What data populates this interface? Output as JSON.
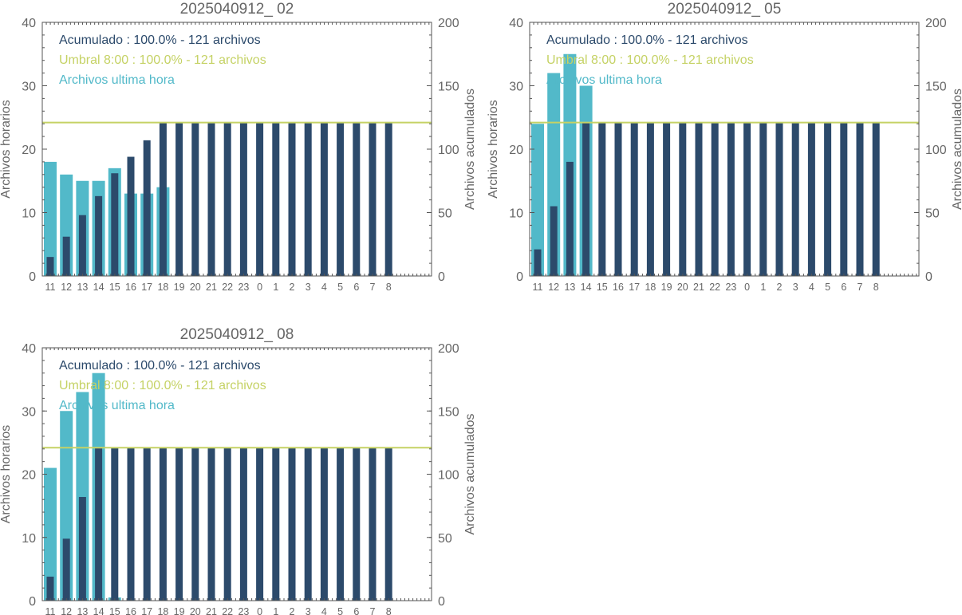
{
  "colors": {
    "hourly": "#52b9c9",
    "cumulative": "#2c4a6b",
    "threshold": "#c5d265",
    "axis": "#555555",
    "text": "#666666"
  },
  "chart_data": [
    {
      "type": "bar",
      "title": "2025040912_ 02",
      "ylabel": "Archivos horarios",
      "y2label": "Archivos acumulados",
      "ylim": [
        0,
        40
      ],
      "y2lim": [
        0,
        200
      ],
      "yticks": [
        0,
        10,
        20,
        30,
        40
      ],
      "y2ticks": [
        0,
        50,
        100,
        150,
        200
      ],
      "categories": [
        "11",
        "12",
        "13",
        "14",
        "15",
        "16",
        "17",
        "18",
        "19",
        "20",
        "21",
        "22",
        "23",
        "0",
        "1",
        "2",
        "3",
        "4",
        "5",
        "6",
        "7",
        "8"
      ],
      "series": [
        {
          "name": "Archivos ultima hora",
          "axis": "left",
          "values": [
            18,
            16,
            15,
            15,
            17,
            13,
            13,
            14,
            0,
            0,
            0,
            0,
            0,
            0,
            0,
            0,
            0,
            0,
            0,
            0,
            0,
            0
          ]
        },
        {
          "name": "Acumulado",
          "axis": "right",
          "values": [
            15,
            31,
            48,
            63,
            81,
            94,
            107,
            121,
            121,
            121,
            121,
            121,
            121,
            121,
            121,
            121,
            121,
            121,
            121,
            121,
            121,
            121
          ]
        }
      ],
      "threshold": {
        "value": 121,
        "axis": "right"
      },
      "legend": [
        {
          "text": "Acumulado : 100.0% - 121 archivos",
          "color": "#2c4a6b"
        },
        {
          "text": "Umbral 8:00 : 100.0% - 121 archivos",
          "color": "#c5d265"
        },
        {
          "text": "Archivos ultima hora",
          "color": "#52b9c9"
        }
      ],
      "legend_position": "top-left",
      "grid": false
    },
    {
      "type": "bar",
      "title": "2025040912_ 05",
      "ylabel": "Archivos horarios",
      "y2label": "Archivos acumulados",
      "ylim": [
        0,
        40
      ],
      "y2lim": [
        0,
        200
      ],
      "yticks": [
        0,
        10,
        20,
        30,
        40
      ],
      "y2ticks": [
        0,
        50,
        100,
        150,
        200
      ],
      "categories": [
        "11",
        "12",
        "13",
        "14",
        "15",
        "16",
        "17",
        "18",
        "19",
        "20",
        "21",
        "22",
        "23",
        "0",
        "1",
        "2",
        "3",
        "4",
        "5",
        "6",
        "7",
        "8"
      ],
      "series": [
        {
          "name": "Archivos ultima hora",
          "axis": "left",
          "values": [
            24,
            32,
            35,
            30,
            0,
            0,
            0,
            0,
            0,
            0,
            0,
            0,
            0,
            0,
            0,
            0,
            0,
            0,
            0,
            0,
            0,
            0
          ]
        },
        {
          "name": "Acumulado",
          "axis": "right",
          "values": [
            21,
            55,
            90,
            121,
            121,
            121,
            121,
            121,
            121,
            121,
            121,
            121,
            121,
            121,
            121,
            121,
            121,
            121,
            121,
            121,
            121,
            121
          ]
        }
      ],
      "threshold": {
        "value": 121,
        "axis": "right"
      },
      "legend": [
        {
          "text": "Acumulado : 100.0% - 121 archivos",
          "color": "#2c4a6b"
        },
        {
          "text": "Umbral 8:00 : 100.0% - 121 archivos",
          "color": "#c5d265"
        },
        {
          "text": "Archivos ultima hora",
          "color": "#52b9c9"
        }
      ],
      "legend_position": "top-left",
      "grid": false
    },
    {
      "type": "bar",
      "title": "2025040912_ 08",
      "ylabel": "Archivos horarios",
      "y2label": "Archivos acumulados",
      "ylim": [
        0,
        40
      ],
      "y2lim": [
        0,
        200
      ],
      "yticks": [
        0,
        10,
        20,
        30,
        40
      ],
      "y2ticks": [
        0,
        50,
        100,
        150,
        200
      ],
      "categories": [
        "11",
        "12",
        "13",
        "14",
        "15",
        "16",
        "17",
        "18",
        "19",
        "20",
        "21",
        "22",
        "23",
        "0",
        "1",
        "2",
        "3",
        "4",
        "5",
        "6",
        "7",
        "8"
      ],
      "series": [
        {
          "name": "Archivos ultima hora",
          "axis": "left",
          "values": [
            21,
            30,
            33,
            36,
            0.5,
            0,
            0,
            0,
            0,
            0,
            0,
            0,
            0,
            0,
            0,
            0,
            0,
            0,
            0,
            0,
            0,
            0
          ]
        },
        {
          "name": "Acumulado",
          "axis": "right",
          "values": [
            19,
            49,
            82,
            121,
            121,
            121,
            121,
            121,
            121,
            121,
            121,
            121,
            121,
            121,
            121,
            121,
            121,
            121,
            121,
            121,
            121,
            121
          ]
        }
      ],
      "threshold": {
        "value": 121,
        "axis": "right"
      },
      "legend": [
        {
          "text": "Acumulado : 100.0% - 121 archivos",
          "color": "#2c4a6b"
        },
        {
          "text": "Umbral 8:00 : 100.0% - 121 archivos",
          "color": "#c5d265"
        },
        {
          "text": "Archivos ultima hora",
          "color": "#52b9c9"
        }
      ],
      "legend_position": "top-left",
      "grid": false
    }
  ]
}
